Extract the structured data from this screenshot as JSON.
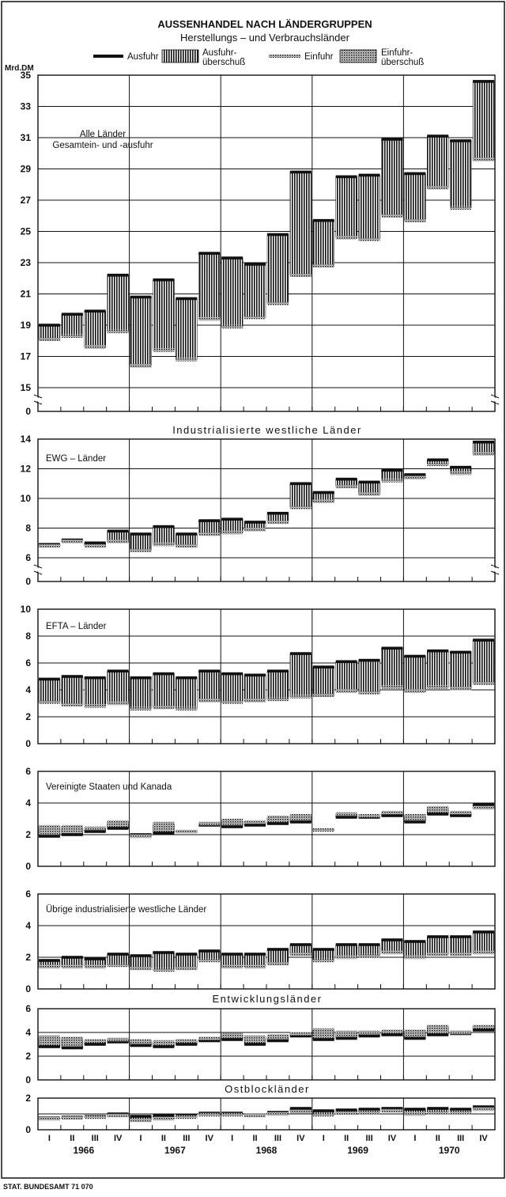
{
  "chart_data": {
    "type": "bar",
    "title": "AUSSENHANDEL NACH LÄNDERGRUPPEN",
    "subtitle": "Herstellungs – und Verbrauchsländer",
    "unit": "Mrd.DM",
    "source": "STAT. BUNDESAMT 71 070",
    "legend": {
      "export": "Ausfuhr",
      "export_surplus": "Ausfuhr-\nüberschuß",
      "import": "Einfuhr",
      "import_surplus": "Einfuhr-\nüberschuß"
    },
    "quarters": [
      "I",
      "II",
      "III",
      "IV"
    ],
    "years": [
      "1966",
      "1967",
      "1968",
      "1969",
      "1970"
    ],
    "group_titles": {
      "industrial": "Industrialisierte westliche Länder",
      "developing": "Entwicklungsländer",
      "eastern_bloc": "Ostblockländer"
    },
    "panels": [
      {
        "id": "all",
        "label": "Alle Länder\nGesamtein- und -ausfuhr",
        "ylim": [
          15,
          35
        ],
        "yticks": [
          15,
          17,
          19,
          21,
          23,
          25,
          27,
          29,
          31,
          33,
          35
        ],
        "zero_tick": "0",
        "broken_axis": true,
        "series": [
          {
            "name": "Ausfuhr",
            "values": [
              19.0,
              19.7,
              19.9,
              22.2,
              20.8,
              21.9,
              20.7,
              23.6,
              23.3,
              22.9,
              24.8,
              28.8,
              25.7,
              28.5,
              28.6,
              30.9,
              28.7,
              31.1,
              30.8,
              34.6
            ]
          },
          {
            "name": "Einfuhr",
            "values": [
              18.1,
              18.3,
              17.6,
              18.6,
              16.4,
              17.4,
              16.8,
              19.4,
              18.9,
              19.5,
              20.4,
              22.2,
              22.8,
              24.6,
              24.5,
              26.0,
              25.7,
              27.8,
              26.5,
              29.6
            ]
          }
        ]
      },
      {
        "id": "ewg",
        "label": "EWG – Länder",
        "ylim": [
          6,
          14
        ],
        "yticks": [
          6,
          8,
          10,
          12,
          14
        ],
        "zero_tick": "0",
        "broken_axis": true,
        "series": [
          {
            "name": "Ausfuhr",
            "values": [
              6.9,
              7.2,
              7.0,
              7.8,
              7.6,
              8.1,
              7.6,
              8.5,
              8.6,
              8.4,
              9.0,
              11.0,
              10.4,
              11.3,
              11.1,
              11.9,
              11.6,
              12.6,
              12.1,
              13.8
            ]
          },
          {
            "name": "Einfuhr",
            "values": [
              6.8,
              7.1,
              6.8,
              7.1,
              6.5,
              6.9,
              6.8,
              7.6,
              7.7,
              7.9,
              8.4,
              9.4,
              9.8,
              10.8,
              10.3,
              11.2,
              11.4,
              12.3,
              11.7,
              13.0
            ]
          }
        ]
      },
      {
        "id": "efta",
        "label": "EFTA – Länder",
        "ylim": [
          0,
          10
        ],
        "yticks": [
          0,
          2,
          4,
          6,
          8,
          10
        ],
        "series": [
          {
            "name": "Ausfuhr",
            "values": [
              4.8,
              5.0,
              4.9,
              5.4,
              4.9,
              5.2,
              4.9,
              5.4,
              5.2,
              5.1,
              5.4,
              6.7,
              5.7,
              6.1,
              6.2,
              7.1,
              6.5,
              6.9,
              6.8,
              7.7
            ]
          },
          {
            "name": "Einfuhr",
            "values": [
              3.1,
              2.9,
              2.8,
              3.0,
              2.6,
              2.7,
              2.6,
              3.2,
              3.1,
              3.2,
              3.3,
              3.5,
              3.6,
              3.9,
              3.8,
              4.2,
              3.9,
              4.2,
              4.1,
              4.5
            ]
          }
        ]
      },
      {
        "id": "usa",
        "label": "Vereinigte Staaten und Kanada",
        "ylim": [
          0,
          6
        ],
        "yticks": [
          0,
          2,
          4,
          6
        ],
        "series": [
          {
            "name": "Ausfuhr",
            "values": [
              1.9,
              2.0,
              2.2,
              2.4,
              2.0,
              2.1,
              2.2,
              2.6,
              2.5,
              2.6,
              2.7,
              2.8,
              2.3,
              3.1,
              3.1,
              3.2,
              2.8,
              3.3,
              3.2,
              3.9
            ]
          },
          {
            "name": "Einfuhr",
            "values": [
              2.5,
              2.5,
              2.4,
              2.8,
              1.9,
              2.7,
              2.2,
              2.7,
              2.9,
              2.8,
              3.1,
              3.2,
              2.3,
              3.3,
              3.2,
              3.4,
              3.2,
              3.7,
              3.4,
              3.7
            ]
          }
        ]
      },
      {
        "id": "other",
        "label": "Übrige industrialisierte westliche Länder",
        "ylim": [
          0,
          6
        ],
        "yticks": [
          0,
          2,
          4,
          6
        ],
        "series": [
          {
            "name": "Ausfuhr",
            "values": [
              1.8,
              2.0,
              1.9,
              2.2,
              2.1,
              2.3,
              2.2,
              2.4,
              2.2,
              2.2,
              2.5,
              2.8,
              2.5,
              2.8,
              2.8,
              3.1,
              3.0,
              3.3,
              3.3,
              3.6
            ]
          },
          {
            "name": "Einfuhr",
            "values": [
              1.4,
              1.4,
              1.4,
              1.5,
              1.3,
              1.2,
              1.3,
              1.8,
              1.4,
              1.4,
              1.6,
              2.2,
              1.8,
              2.0,
              2.1,
              2.3,
              2.0,
              2.2,
              2.2,
              2.3
            ]
          }
        ]
      },
      {
        "id": "dev",
        "label": "",
        "ylim": [
          0,
          6
        ],
        "yticks": [
          0,
          2,
          4,
          6
        ],
        "series": [
          {
            "name": "Ausfuhr",
            "values": [
              2.8,
              2.7,
              3.0,
              3.2,
              2.9,
              2.8,
              3.0,
              3.3,
              3.4,
              3.0,
              3.3,
              3.7,
              3.4,
              3.5,
              3.7,
              3.8,
              3.5,
              3.8,
              3.9,
              4.2
            ]
          },
          {
            "name": "Einfuhr",
            "values": [
              3.6,
              3.5,
              3.3,
              3.4,
              3.3,
              3.2,
              3.3,
              3.5,
              3.8,
              3.6,
              3.7,
              3.9,
              4.2,
              4.0,
              4.0,
              4.1,
              4.1,
              4.5,
              4.0,
              4.5
            ]
          }
        ]
      },
      {
        "id": "east",
        "label": "",
        "ylim": [
          0,
          2
        ],
        "yticks": [
          0,
          1,
          2
        ],
        "ytick_labels": [
          "0",
          "",
          "2"
        ],
        "series": [
          {
            "name": "Ausfuhr",
            "values": [
              0.75,
              0.8,
              0.85,
              1.0,
              0.85,
              0.9,
              0.9,
              1.05,
              1.05,
              0.9,
              1.1,
              1.35,
              1.2,
              1.25,
              1.3,
              1.35,
              1.3,
              1.35,
              1.3,
              1.45
            ]
          },
          {
            "name": "Einfuhr",
            "values": [
              0.7,
              0.75,
              0.8,
              0.9,
              0.6,
              0.7,
              0.8,
              0.95,
              0.95,
              0.9,
              1.0,
              1.15,
              0.95,
              1.05,
              1.1,
              1.2,
              1.0,
              1.1,
              1.1,
              1.3
            ]
          }
        ]
      }
    ]
  }
}
